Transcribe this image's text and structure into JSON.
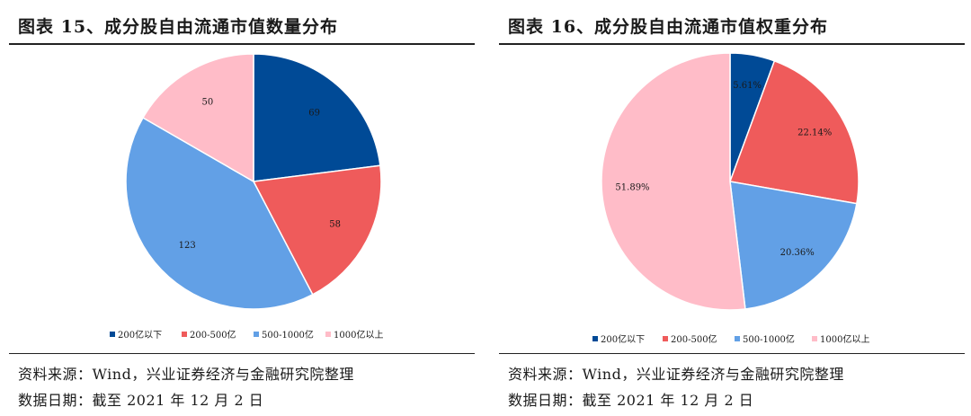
{
  "colors": {
    "cat1": "#004a96",
    "cat2": "#ef5b5b",
    "cat3": "#62a0e6",
    "cat4": "#ffbcc8"
  },
  "legend": [
    "200亿以下",
    "200-500亿",
    "500-1000亿",
    "1000亿以上"
  ],
  "chart_data": [
    {
      "type": "pie",
      "title": "图表 15、成分股自由流通市值数量分布",
      "categories": [
        "200亿以下",
        "200-500亿",
        "500-1000亿",
        "1000亿以上"
      ],
      "values": [
        69,
        58,
        123,
        50
      ],
      "value_labels": [
        "69",
        "58",
        "123",
        "50"
      ],
      "legend_position": "bottom"
    },
    {
      "type": "pie",
      "title": "图表 16、成分股自由流通市值权重分布",
      "categories": [
        "200亿以下",
        "200-500亿",
        "500-1000亿",
        "1000亿以上"
      ],
      "values": [
        5.61,
        22.14,
        20.36,
        51.89
      ],
      "value_labels": [
        "5.61%",
        "22.14%",
        "20.36%",
        "51.89%"
      ],
      "legend_position": "bottom"
    }
  ],
  "footer": {
    "source": "资料来源：Wind，兴业证券经济与金融研究院整理",
    "date": "数据日期：截至 2021 年 12 月 2 日"
  }
}
